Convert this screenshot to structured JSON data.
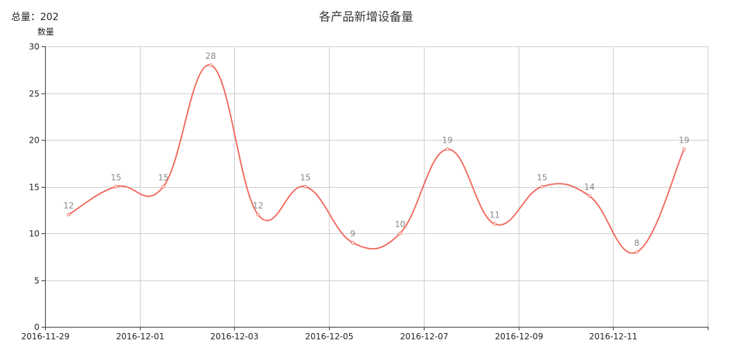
{
  "header": {
    "total_label": "总量：202"
  },
  "chart_data": {
    "type": "line",
    "title": "各产品新增设备量",
    "xlabel": "",
    "ylabel": "数量",
    "ylim": [
      0,
      30
    ],
    "yticks": [
      0,
      5,
      10,
      15,
      20,
      25,
      30
    ],
    "x_tick_labels": [
      "2016-11-29",
      "2016-12-01",
      "2016-12-03",
      "2016-12-05",
      "2016-12-07",
      "2016-12-09",
      "2016-12-11"
    ],
    "x": [
      "2016-11-29",
      "2016-11-30",
      "2016-12-01",
      "2016-12-02",
      "2016-12-03",
      "2016-12-04",
      "2016-12-05",
      "2016-12-06",
      "2016-12-07",
      "2016-12-08",
      "2016-12-09",
      "2016-12-10",
      "2016-12-11",
      "2016-12-12"
    ],
    "series": [
      {
        "values": [
          12,
          15,
          15,
          28,
          12,
          15,
          9,
          10,
          19,
          11,
          15,
          14,
          8,
          19
        ]
      }
    ],
    "smooth": true,
    "grid": true,
    "line_color": "#f26a5e"
  }
}
